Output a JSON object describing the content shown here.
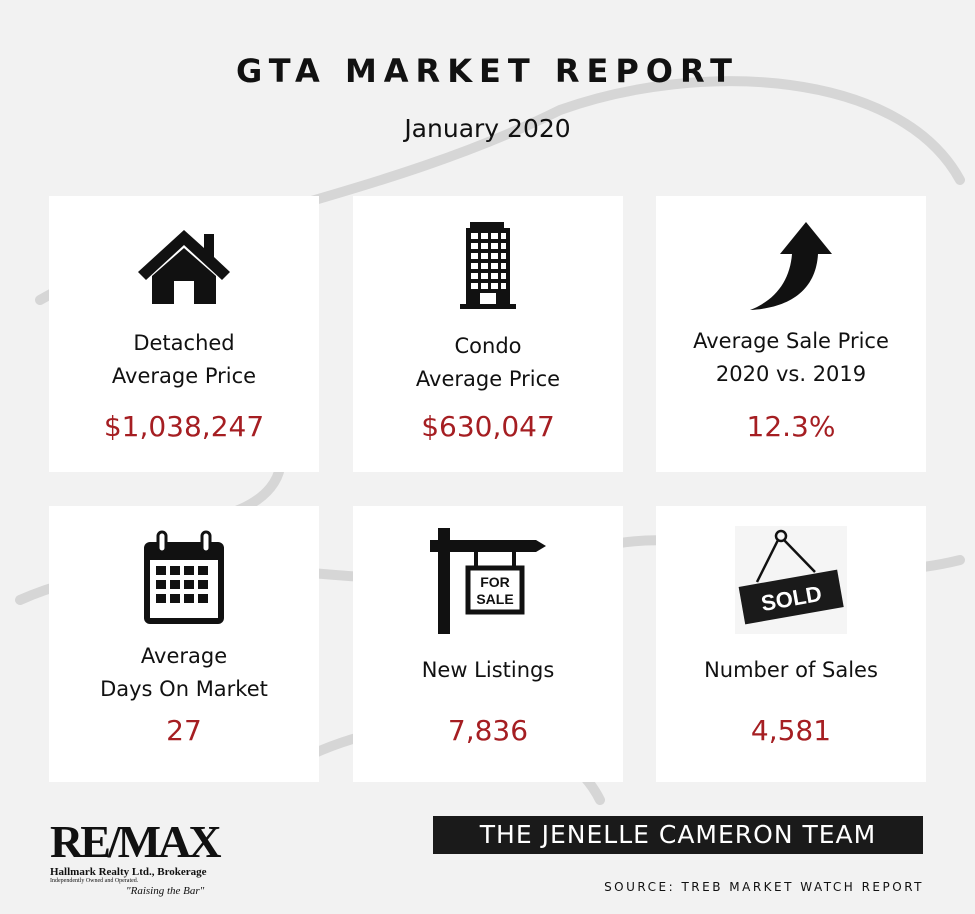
{
  "header": {
    "title": "GTA MARKET REPORT",
    "subtitle": "January 2020"
  },
  "cards": [
    {
      "icon": "house-icon",
      "label_line1": "Detached",
      "label_line2": "Average Price",
      "value": "$1,038,247"
    },
    {
      "icon": "building-icon",
      "label_line1": "Condo",
      "label_line2": "Average Price",
      "value": "$630,047"
    },
    {
      "icon": "arrow-up-icon",
      "label_line1": "Average Sale Price",
      "label_line2": "2020 vs. 2019",
      "value": "12.3%"
    },
    {
      "icon": "calendar-icon",
      "label_line1": "Average",
      "label_line2": "Days On Market",
      "value": "27"
    },
    {
      "icon": "for-sale-sign-icon",
      "label_line1": "New Listings",
      "value": "7,836",
      "sign_text_1": "FOR",
      "sign_text_2": "SALE"
    },
    {
      "icon": "sold-sign-icon",
      "label_line1": "Number of Sales",
      "value": "4,581",
      "sign_text": "SOLD"
    }
  ],
  "footer": {
    "brand": "RE/MAX",
    "brokerage": "Hallmark Realty Ltd., Brokerage",
    "owned": "Independently Owned and Operated.",
    "tagline": "\"Raising the Bar\"",
    "team": "THE JENELLE CAMERON TEAM",
    "source": "SOURCE: TREB MARKET WATCH REPORT"
  },
  "colors": {
    "background": "#f2f2f2",
    "card": "#ffffff",
    "value": "#a51e22",
    "team_bar": "#1a1a1a"
  }
}
